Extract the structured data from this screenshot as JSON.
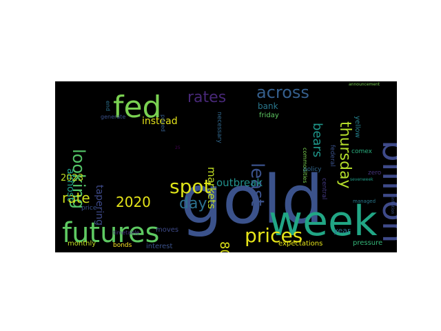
{
  "wordcloud": {
    "background": "#000000",
    "words": [
      {
        "text": "gold",
        "color": "#3b528b"
      },
      {
        "text": "week",
        "color": "#21a685"
      },
      {
        "text": "futures",
        "color": "#5ec962"
      },
      {
        "text": "billion",
        "color": "#3e4a89"
      },
      {
        "text": "fed",
        "color": "#7ad151"
      },
      {
        "text": "prices",
        "color": "#e6e419"
      },
      {
        "text": "spot",
        "color": "#dde318"
      },
      {
        "text": "least",
        "color": "#3b528b"
      },
      {
        "text": "thursday",
        "color": "#b5de2b"
      },
      {
        "text": "across",
        "color": "#355f8d"
      },
      {
        "text": "rates",
        "color": "#482878"
      },
      {
        "text": "looking",
        "color": "#54c568"
      },
      {
        "text": "2020",
        "color": "#e5e419"
      },
      {
        "text": "day",
        "color": "#2c718e"
      },
      {
        "text": "rate",
        "color": "#d0e11c"
      },
      {
        "text": "80",
        "color": "#dde318"
      },
      {
        "text": "bears",
        "color": "#1f978b"
      },
      {
        "text": "markets",
        "color": "#c2df23"
      },
      {
        "text": "outbreak",
        "color": "#21918c"
      },
      {
        "text": "instead",
        "color": "#e5e419"
      },
      {
        "text": "tapering",
        "color": "#3e4a89"
      },
      {
        "text": "almost",
        "color": "#1f9e89"
      },
      {
        "text": "2023",
        "color": "#bddf26"
      },
      {
        "text": "bank",
        "color": "#2a788e"
      },
      {
        "text": "friday",
        "color": "#5ec962"
      },
      {
        "text": "commodities",
        "color": "#7ad151"
      },
      {
        "text": "yellow",
        "color": "#26828e"
      },
      {
        "text": "federal",
        "color": "#3b528b"
      },
      {
        "text": "comex",
        "color": "#2ab07f"
      },
      {
        "text": "central",
        "color": "#443983"
      },
      {
        "text": "policy",
        "color": "#31688e"
      },
      {
        "text": "zero",
        "color": "#46337e"
      },
      {
        "text": "necessary",
        "color": "#31688e"
      },
      {
        "text": "interest",
        "color": "#3b528b"
      },
      {
        "text": "moves",
        "color": "#3e4a89"
      },
      {
        "text": "monthly",
        "color": "#c2df23"
      },
      {
        "text": "bonds",
        "color": "#fde725"
      },
      {
        "text": "year",
        "color": "#2c718e"
      },
      {
        "text": "pressure",
        "color": "#35b779"
      },
      {
        "text": "expectations",
        "color": "#e5e419"
      },
      {
        "text": "price",
        "color": "#3b528b"
      },
      {
        "text": "timetable",
        "color": "#46337e"
      },
      {
        "text": "generate",
        "color": "#3b528b"
      },
      {
        "text": "end",
        "color": "#2c718e"
      },
      {
        "text": "priced",
        "color": "#355f8d"
      },
      {
        "text": "managed",
        "color": "#2a788e"
      },
      {
        "text": "announcement",
        "color": "#7ad151"
      },
      {
        "text": "sevenweek",
        "color": "#1f9e89"
      },
      {
        "text": "inflation",
        "color": "#3b528b"
      },
      {
        "text": "25",
        "color": "#440154"
      }
    ]
  }
}
